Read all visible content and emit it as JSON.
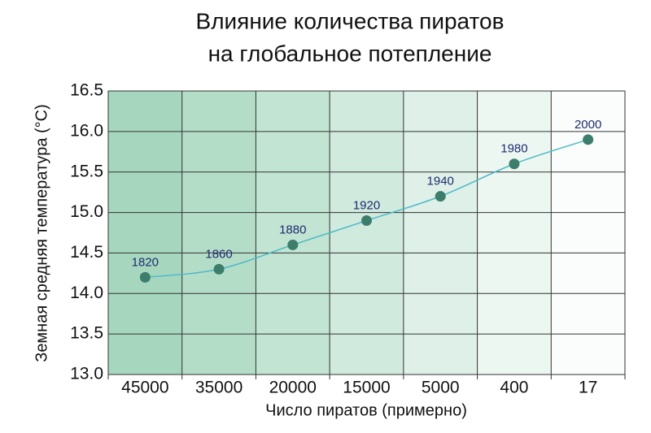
{
  "chart_data": {
    "type": "line",
    "title": [
      "Влияние количества пиратов",
      "на глобальное потепление"
    ],
    "x_label": "Число пиратов (примерно)",
    "y_label": "Земная средняя температура (°C)",
    "categories": [
      "45000",
      "35000",
      "20000",
      "15000",
      "5000",
      "400",
      "17"
    ],
    "values": [
      14.2,
      14.3,
      14.6,
      14.9,
      15.2,
      15.6,
      15.9
    ],
    "point_labels": [
      "1820",
      "1860",
      "1880",
      "1920",
      "1940",
      "1980",
      "2000"
    ],
    "line_color": "#4db8c8",
    "marker_color": "#3d7d6c",
    "label_color": "#1f2a70",
    "ylim": [
      13.0,
      16.5
    ],
    "yticks": [
      {
        "value": 13,
        "label": "13.0"
      },
      13.5,
      {
        "value": 14,
        "label": "14.0"
      },
      14.5,
      {
        "value": 15,
        "label": "15.0"
      },
      15.5,
      {
        "value": 16,
        "label": "16.0"
      },
      16.5
    ],
    "grid": true
  }
}
